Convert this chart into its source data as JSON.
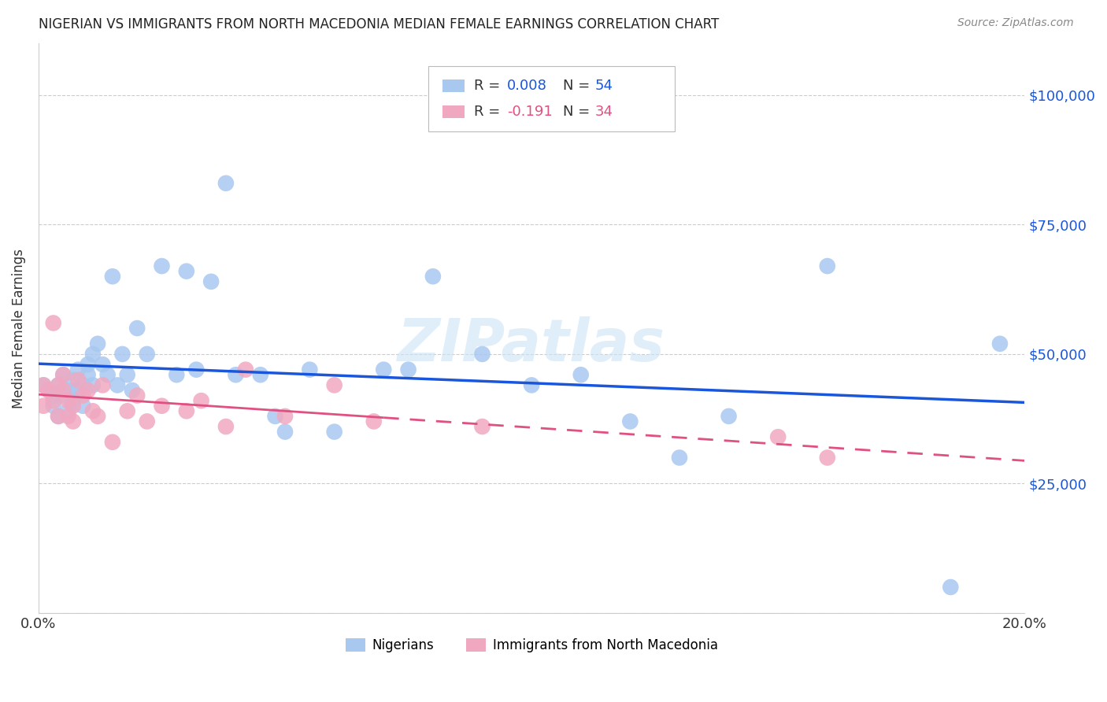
{
  "title": "NIGERIAN VS IMMIGRANTS FROM NORTH MACEDONIA MEDIAN FEMALE EARNINGS CORRELATION CHART",
  "source": "Source: ZipAtlas.com",
  "ylabel": "Median Female Earnings",
  "xlim": [
    0,
    0.2
  ],
  "ylim": [
    0,
    110000
  ],
  "yticks": [
    0,
    25000,
    50000,
    75000,
    100000
  ],
  "ytick_labels_right": [
    "",
    "$25,000",
    "$50,000",
    "$75,000",
    "$100,000"
  ],
  "xticks": [
    0.0,
    0.05,
    0.1,
    0.15,
    0.2
  ],
  "xtick_labels": [
    "0.0%",
    "",
    "",
    "",
    "20.0%"
  ],
  "blue_color": "#a8c8f0",
  "pink_color": "#f0a8c0",
  "blue_line_color": "#1a56db",
  "pink_line_color": "#e05080",
  "watermark": "ZIPatlas",
  "legend_label1": "Nigerians",
  "legend_label2": "Immigrants from North Macedonia",
  "blue_x": [
    0.001,
    0.002,
    0.003,
    0.003,
    0.004,
    0.004,
    0.005,
    0.005,
    0.006,
    0.006,
    0.007,
    0.007,
    0.008,
    0.008,
    0.009,
    0.009,
    0.01,
    0.01,
    0.011,
    0.011,
    0.012,
    0.013,
    0.014,
    0.015,
    0.016,
    0.017,
    0.018,
    0.019,
    0.02,
    0.022,
    0.025,
    0.028,
    0.03,
    0.032,
    0.035,
    0.038,
    0.04,
    0.045,
    0.048,
    0.05,
    0.055,
    0.06,
    0.07,
    0.075,
    0.08,
    0.09,
    0.1,
    0.11,
    0.12,
    0.13,
    0.14,
    0.16,
    0.185,
    0.195
  ],
  "blue_y": [
    44000,
    43000,
    42000,
    40000,
    38000,
    44000,
    42000,
    46000,
    43000,
    39000,
    41000,
    45000,
    43000,
    47000,
    44000,
    40000,
    46000,
    48000,
    50000,
    44000,
    52000,
    48000,
    46000,
    65000,
    44000,
    50000,
    46000,
    43000,
    55000,
    50000,
    67000,
    46000,
    66000,
    47000,
    64000,
    83000,
    46000,
    46000,
    38000,
    35000,
    47000,
    35000,
    47000,
    47000,
    65000,
    50000,
    44000,
    46000,
    37000,
    30000,
    38000,
    67000,
    5000,
    52000
  ],
  "pink_x": [
    0.001,
    0.001,
    0.002,
    0.003,
    0.003,
    0.004,
    0.004,
    0.005,
    0.005,
    0.006,
    0.006,
    0.007,
    0.007,
    0.008,
    0.009,
    0.01,
    0.011,
    0.012,
    0.013,
    0.015,
    0.018,
    0.02,
    0.022,
    0.025,
    0.03,
    0.033,
    0.038,
    0.042,
    0.05,
    0.06,
    0.068,
    0.09,
    0.15,
    0.16
  ],
  "pink_y": [
    44000,
    40000,
    43000,
    56000,
    41000,
    44000,
    38000,
    46000,
    43000,
    41000,
    38000,
    40000,
    37000,
    45000,
    42000,
    43000,
    39000,
    38000,
    44000,
    33000,
    39000,
    42000,
    37000,
    40000,
    39000,
    41000,
    36000,
    47000,
    38000,
    44000,
    37000,
    36000,
    34000,
    30000
  ]
}
